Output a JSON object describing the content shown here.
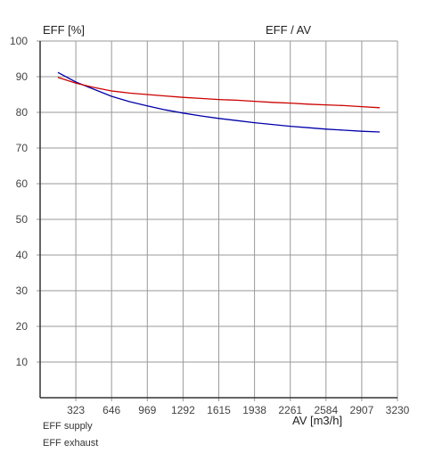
{
  "chart_data": {
    "type": "line",
    "title": "EFF / AV",
    "ylabel": "EFF [%]",
    "xlabel": "AV [m3/h]",
    "xlim": [
      0,
      3230
    ],
    "ylim": [
      0,
      100
    ],
    "x_ticks": [
      323,
      646,
      969,
      1292,
      1615,
      1938,
      2261,
      2584,
      2907,
      3230
    ],
    "y_ticks": [
      10,
      20,
      30,
      40,
      50,
      60,
      70,
      80,
      90,
      100
    ],
    "grid": true,
    "legend_position": "bottom-left",
    "series": [
      {
        "name": "EFF supply",
        "color": "#0000aa",
        "x": [
          160,
          323,
          484,
          646,
          808,
          969,
          1131,
          1292,
          1454,
          1615,
          1777,
          1938,
          2100,
          2261,
          2423,
          2584,
          2746,
          2907,
          3070
        ],
        "y": [
          91.2,
          88.5,
          86.5,
          84.5,
          83.0,
          81.8,
          80.7,
          79.8,
          79.0,
          78.3,
          77.7,
          77.1,
          76.6,
          76.1,
          75.7,
          75.3,
          75.0,
          74.7,
          74.5
        ]
      },
      {
        "name": "EFF exhaust",
        "color": "#cc0000",
        "x": [
          160,
          323,
          484,
          646,
          808,
          969,
          1131,
          1292,
          1454,
          1615,
          1777,
          1938,
          2100,
          2261,
          2423,
          2584,
          2746,
          2907,
          3070
        ],
        "y": [
          89.8,
          88.2,
          87.0,
          86.0,
          85.4,
          85.0,
          84.6,
          84.2,
          83.9,
          83.6,
          83.4,
          83.1,
          82.8,
          82.6,
          82.3,
          82.1,
          81.9,
          81.6,
          81.3
        ]
      }
    ]
  }
}
